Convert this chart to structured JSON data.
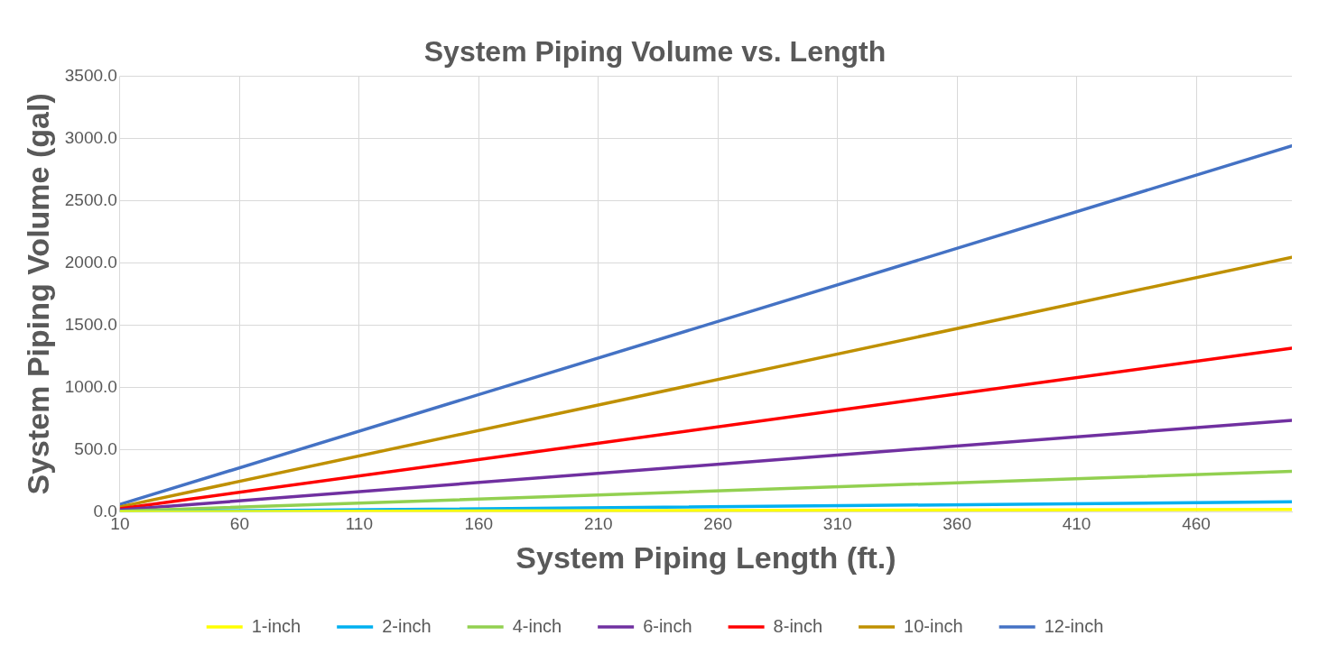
{
  "chart_data": {
    "type": "line",
    "title": "System Piping Volume vs. Length",
    "xlabel": "System Piping Length (ft.)",
    "ylabel": "System Piping Volume (gal)",
    "x": [
      10,
      500
    ],
    "series": [
      {
        "name": "1-inch",
        "color": "#ffff00",
        "values": [
          0,
          20
        ]
      },
      {
        "name": "2-inch",
        "color": "#00b0f0",
        "values": [
          0,
          80
        ]
      },
      {
        "name": "4-inch",
        "color": "#92d050",
        "values": [
          5,
          325
        ]
      },
      {
        "name": "6-inch",
        "color": "#7030a0",
        "values": [
          15,
          735
        ]
      },
      {
        "name": "8-inch",
        "color": "#ff0000",
        "values": [
          25,
          1315
        ]
      },
      {
        "name": "10-inch",
        "color": "#bf9000",
        "values": [
          40,
          2045
        ]
      },
      {
        "name": "12-inch",
        "color": "#4472c4",
        "values": [
          60,
          2940
        ]
      }
    ],
    "xlim": [
      10,
      500
    ],
    "xticks": [
      10,
      60,
      110,
      160,
      210,
      260,
      310,
      360,
      410,
      460
    ],
    "ylim": [
      0,
      3500
    ],
    "yticks": [
      {
        "value": 0,
        "label": "0.0"
      },
      {
        "value": 500,
        "label": "500.0"
      },
      {
        "value": 1000,
        "label": "1000.0"
      },
      {
        "value": 1500,
        "label": "1500.0"
      },
      {
        "value": 2000,
        "label": "2000.0"
      },
      {
        "value": 2500,
        "label": "2500.0"
      },
      {
        "value": 3000,
        "label": "3000.0"
      },
      {
        "value": 3500,
        "label": "3500.0"
      }
    ],
    "grid": true,
    "legend": "bottom",
    "marker": "none",
    "line_style": "solid"
  }
}
